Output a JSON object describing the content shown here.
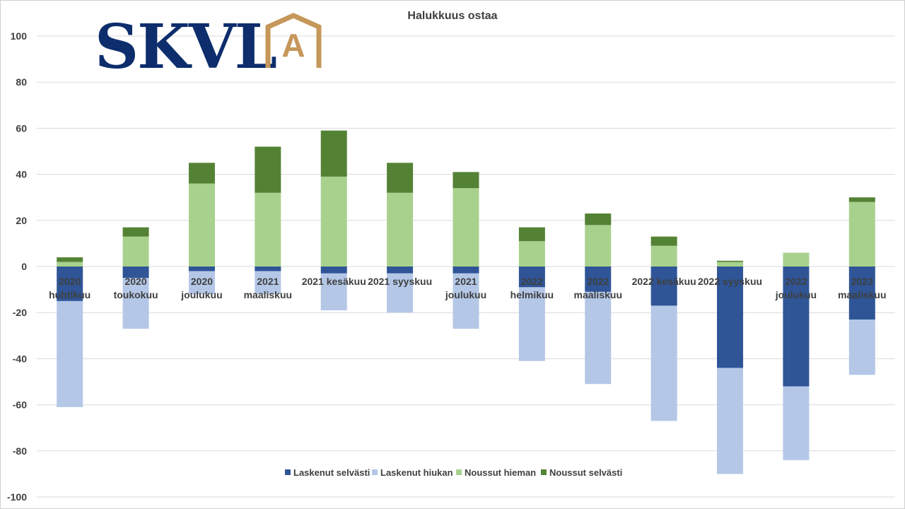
{
  "logo": {
    "text": "SKVL",
    "mark_letter": "A",
    "colors": {
      "text": "#0d2d6c",
      "mark": "#c5975a"
    }
  },
  "chart_data": {
    "type": "bar",
    "stacked": true,
    "title": "Halukkuus ostaa",
    "xlabel": "",
    "ylabel": "",
    "ylim": [
      -100,
      100
    ],
    "yticks": [
      100,
      80,
      60,
      40,
      20,
      0,
      -20,
      -40,
      -60,
      -80,
      -100
    ],
    "grid": true,
    "legend_position": "bottom",
    "categories": [
      [
        "2020",
        "huhtikuu"
      ],
      [
        "2020",
        "toukokuu"
      ],
      [
        "2020",
        "joulukuu"
      ],
      [
        "2021",
        "maaliskuu"
      ],
      [
        "2021 kesäkuu"
      ],
      [
        "2021 syyskuu"
      ],
      [
        "2021",
        "joulukuu"
      ],
      [
        "2022",
        "helmikuu"
      ],
      [
        "2022",
        "maaliskuu"
      ],
      [
        "2022 kesäkuu"
      ],
      [
        "2022 syyskuu"
      ],
      [
        "2022",
        "joulukuu"
      ],
      [
        "2023",
        "maaliskuu"
      ]
    ],
    "series": [
      {
        "name": "Laskenut selvästi",
        "color": "#2f5597",
        "values": [
          -15,
          -5,
          -2,
          -2,
          -3,
          -3,
          -3,
          -9,
          -11,
          -17,
          -44,
          -52,
          -23
        ]
      },
      {
        "name": "Laskenut hiukan",
        "color": "#b4c7e7",
        "values": [
          -46,
          -22,
          -10,
          -10,
          -16,
          -17,
          -24,
          -32,
          -40,
          -50,
          -46,
          -32,
          -24
        ]
      },
      {
        "name": "Noussut hieman",
        "color": "#a9d18e",
        "values": [
          2,
          13,
          36,
          32,
          39,
          32,
          34,
          11,
          18,
          9,
          2,
          6,
          28
        ]
      },
      {
        "name": "Noussut selvästi",
        "color": "#548235",
        "values": [
          2,
          4,
          9,
          20,
          20,
          13,
          7,
          6,
          5,
          4,
          0.5,
          0,
          2
        ]
      }
    ]
  }
}
